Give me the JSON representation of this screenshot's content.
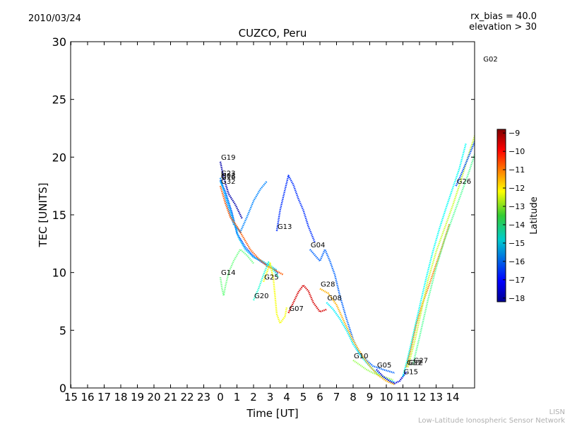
{
  "header": {
    "date": "2010/03/24",
    "rx_bias": "rx_bias = 40.0",
    "elevation": "elevation > 30"
  },
  "footer": {
    "line1": "LISN",
    "line2": "Low-Latitude Ionospheric Sensor Network"
  },
  "chart_data": {
    "type": "scatter",
    "title": "CUZCO, Peru",
    "xlabel": "Time [UT]",
    "ylabel": "TEC [UNITS]",
    "x_tick_labels": [
      "15",
      "16",
      "17",
      "18",
      "19",
      "20",
      "21",
      "22",
      "23",
      "0",
      "1",
      "2",
      "3",
      "4",
      "5",
      "6",
      "7",
      "8",
      "9",
      "10",
      "11",
      "12",
      "13",
      "14"
    ],
    "y_ticks": [
      0,
      5,
      10,
      15,
      20,
      25,
      30
    ],
    "ylim": [
      0,
      30
    ],
    "grid": false,
    "colorbar": {
      "label": "Latitude",
      "ticks": [
        -9,
        -10,
        -11,
        -12,
        -13,
        -14,
        -15,
        -16,
        -17,
        -18
      ],
      "range": [
        -18.2,
        -8.8
      ],
      "colormap": "jet"
    },
    "series": [
      {
        "name": "G19",
        "latitude": -17.8,
        "x": [
          24.0,
          24.2,
          24.5,
          24.9,
          25.3
        ],
        "y": [
          19.6,
          18.2,
          16.8,
          15.9,
          14.7
        ]
      },
      {
        "name": "G03",
        "latitude": -16.4,
        "x": [
          24.0,
          24.3,
          24.7,
          25.0,
          25.5,
          26.0,
          26.5,
          27.0,
          27.5
        ],
        "y": [
          18.0,
          17.0,
          15.2,
          13.4,
          12.2,
          11.4,
          10.9,
          10.5,
          9.9
        ]
      },
      {
        "name": "G23",
        "latitude": -15.8,
        "x": [
          24.0,
          24.4,
          24.8,
          25.2,
          25.6,
          26.0,
          26.4,
          26.8
        ],
        "y": [
          18.2,
          16.0,
          14.2,
          13.5,
          14.8,
          16.2,
          17.2,
          17.9
        ]
      },
      {
        "name": "G16",
        "latitude": -15.2,
        "x": [
          24.0,
          24.3,
          24.7,
          25.1,
          25.5,
          26.0,
          26.5,
          27.0,
          27.4
        ],
        "y": [
          17.9,
          16.8,
          15.0,
          13.0,
          12.0,
          11.3,
          11.0,
          10.6,
          10.2
        ]
      },
      {
        "name": "G32",
        "latitude": -10.8,
        "x": [
          24.0,
          24.3,
          24.6,
          25.0,
          25.4,
          25.8,
          26.3,
          26.8,
          27.3,
          27.8
        ],
        "y": [
          17.5,
          16.0,
          14.8,
          14.0,
          13.0,
          12.0,
          11.2,
          10.6,
          10.2,
          9.8
        ]
      },
      {
        "name": "G14",
        "latitude": -13.6,
        "x": [
          24.0,
          24.1,
          24.2,
          24.3,
          24.5,
          24.8,
          25.2,
          25.6,
          26.0
        ],
        "y": [
          9.6,
          8.6,
          8.0,
          8.8,
          10.0,
          11.0,
          12.0,
          11.5,
          10.8
        ]
      },
      {
        "name": "G20",
        "latitude": -14.3,
        "x": [
          26.0,
          26.3,
          26.6,
          26.9,
          27.2,
          27.5
        ],
        "y": [
          7.6,
          8.6,
          9.8,
          10.9,
          10.2,
          9.6
        ]
      },
      {
        "name": "G25",
        "latitude": -12.4,
        "x": [
          26.6,
          27.0,
          27.2,
          27.4,
          27.6,
          27.9,
          28.0
        ],
        "y": [
          9.2,
          10.8,
          9.4,
          6.4,
          5.6,
          6.2,
          7.0
        ]
      },
      {
        "name": "G13",
        "latitude": -16.6,
        "x": [
          27.4,
          27.6,
          27.9,
          28.1,
          28.4,
          28.7,
          29.0,
          29.3,
          29.7
        ],
        "y": [
          13.6,
          15.4,
          17.2,
          18.4,
          17.6,
          16.4,
          15.4,
          14.0,
          12.6
        ]
      },
      {
        "name": "G04",
        "latitude": -16.1,
        "x": [
          29.4,
          29.7,
          30.0,
          30.3,
          30.6,
          30.9,
          31.2,
          31.6,
          32.0,
          32.4,
          32.8,
          33.2,
          33.8,
          34.5
        ],
        "y": [
          12.0,
          11.5,
          11.0,
          12.0,
          11.0,
          9.8,
          8.0,
          6.0,
          4.2,
          3.0,
          2.4,
          1.9,
          1.6,
          1.3
        ]
      },
      {
        "name": "G07",
        "latitude": -9.6,
        "x": [
          28.1,
          28.4,
          28.7,
          29.0,
          29.3,
          29.6,
          30.0,
          30.4
        ],
        "y": [
          6.5,
          7.4,
          8.3,
          8.9,
          8.4,
          7.4,
          6.6,
          6.8
        ]
      },
      {
        "name": "G08",
        "latitude": -14.8,
        "x": [
          30.4,
          30.8,
          31.2,
          31.6,
          32.0,
          32.4,
          32.8,
          33.2,
          33.6,
          34.0,
          34.5
        ],
        "y": [
          7.4,
          6.8,
          6.0,
          5.0,
          3.8,
          2.9,
          2.2,
          1.6,
          1.1,
          0.8,
          0.5
        ]
      },
      {
        "name": "G28",
        "latitude": -11.6,
        "x": [
          30.0,
          30.5,
          31.0,
          31.5,
          32.0,
          32.5,
          33.0,
          33.5,
          34.0,
          34.5
        ],
        "y": [
          8.6,
          8.2,
          7.2,
          5.6,
          4.1,
          2.9,
          1.9,
          1.1,
          0.6,
          0.3
        ]
      },
      {
        "name": "G10",
        "latitude": -13.2,
        "x": [
          32.0,
          32.4,
          32.8,
          33.2,
          33.6,
          34.0,
          34.4
        ],
        "y": [
          2.4,
          2.0,
          1.6,
          1.3,
          1.1,
          0.9,
          0.7
        ]
      },
      {
        "name": "G05",
        "latitude": -17.4,
        "x": [
          33.4,
          33.8,
          34.2,
          34.5,
          34.8,
          35.0,
          35.2
        ],
        "y": [
          1.6,
          1.0,
          0.6,
          0.4,
          0.6,
          1.0,
          1.4
        ]
      },
      {
        "name": "G17",
        "latitude": -11.2,
        "x": [
          35.2,
          35.5,
          35.8,
          36.2,
          36.6,
          37.0,
          37.4,
          37.8
        ],
        "y": [
          1.8,
          3.5,
          5.5,
          7.4,
          9.0,
          10.7,
          12.4,
          14.2
        ]
      },
      {
        "name": "G15",
        "latitude": -14.6,
        "x": [
          35.0,
          35.3,
          35.6,
          36.0,
          36.4,
          36.8,
          37.2,
          37.6,
          38.0,
          38.4,
          38.8
        ],
        "y": [
          1.0,
          2.6,
          4.5,
          7.0,
          9.5,
          11.8,
          13.8,
          15.6,
          17.3,
          19.0,
          21.2
        ]
      },
      {
        "name": "G12",
        "latitude": -12.8,
        "x": [
          35.3,
          35.7,
          36.1,
          36.5,
          37.0,
          37.5,
          38.0,
          38.5,
          39.0,
          39.5,
          39.95
        ],
        "y": [
          1.8,
          4.0,
          6.6,
          9.3,
          11.8,
          13.8,
          15.8,
          18.0,
          20.4,
          22.6,
          25.0
        ]
      },
      {
        "name": "G27",
        "latitude": -13.8,
        "x": [
          35.6,
          36.0,
          36.5,
          37.0,
          37.5,
          38.0,
          38.5,
          39.0,
          39.5,
          39.95
        ],
        "y": [
          2.0,
          4.4,
          7.6,
          10.4,
          12.8,
          14.8,
          16.8,
          18.8,
          21.0,
          23.4
        ]
      },
      {
        "name": "G26",
        "latitude": -16.3,
        "x": [
          38.2,
          38.6,
          39.0,
          39.4,
          39.8,
          39.95
        ],
        "y": [
          17.5,
          18.8,
          20.2,
          21.6,
          22.6,
          23.2
        ]
      },
      {
        "name": "G02",
        "latitude": -10.5,
        "x": [
          39.8,
          39.9,
          39.95
        ],
        "y": [
          28.1,
          28.5,
          28.7
        ]
      }
    ]
  }
}
